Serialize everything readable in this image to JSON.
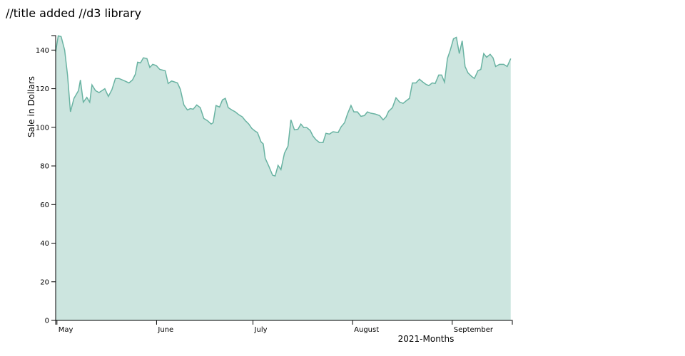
{
  "chart_data": {
    "type": "area",
    "title": "//title added //d3 library",
    "x_label": "2021-Months",
    "y_label": "Sale in Dollars",
    "x": [
      120.6,
      121.4,
      122.3,
      123.4,
      124.3,
      125.2,
      126.3,
      127.7,
      128.3,
      129.2,
      130.3,
      131.2,
      131.9,
      133.0,
      134.1,
      135.9,
      137.0,
      138.1,
      139.2,
      140.3,
      142.1,
      143.4,
      144.5,
      145.4,
      146.1,
      147.0,
      147.9,
      149.0,
      149.9,
      150.8,
      151.9,
      153.0,
      154.7,
      155.6,
      156.7,
      158.5,
      159.4,
      160.5,
      161.6,
      162.5,
      163.4,
      164.5,
      165.6,
      166.7,
      167.8,
      169.0,
      169.6,
      170.5,
      171.6,
      172.5,
      173.4,
      174.3,
      175.4,
      176.5,
      177.6,
      178.7,
      179.6,
      180.7,
      181.6,
      182.7,
      183.4,
      184.5,
      185.2,
      185.8,
      186.9,
      188.1,
      188.9,
      189.8,
      190.7,
      191.8,
      192.9,
      193.8,
      194.9,
      196.0,
      196.9,
      197.8,
      198.7,
      199.8,
      200.7,
      201.6,
      202.7,
      203.8,
      204.7,
      205.8,
      206.9,
      208.5,
      209.4,
      210.5,
      211.4,
      212.5,
      213.4,
      214.5,
      215.6,
      216.7,
      217.6,
      218.7,
      220.0,
      221.4,
      222.5,
      223.4,
      224.2,
      225.4,
      226.5,
      227.6,
      228.7,
      229.8,
      230.7,
      231.6,
      232.7,
      233.8,
      234.9,
      235.8,
      236.7,
      237.8,
      238.7,
      239.8,
      240.7,
      241.6,
      242.5,
      243.4,
      244.4,
      245.3,
      246.2,
      247.1,
      248.0,
      248.9,
      250.0,
      250.9,
      252.0,
      252.9,
      253.8,
      254.7,
      255.8,
      256.7,
      257.5,
      258.7,
      260.0,
      261.1,
      262.2
    ],
    "values": [
      139,
      147.4,
      147,
      140,
      127,
      108,
      115,
      119,
      124.5,
      113,
      115.5,
      113,
      122,
      119,
      118,
      120,
      116,
      119.5,
      125.3,
      125.3,
      124,
      123,
      124.5,
      127.5,
      133.7,
      133.4,
      136,
      135.6,
      131,
      132.6,
      132,
      130,
      129.3,
      122.7,
      124,
      123,
      119.7,
      111.6,
      109,
      109.7,
      109.4,
      111.6,
      110.2,
      104.6,
      103.5,
      101.7,
      102.4,
      111.3,
      110.5,
      114.2,
      115,
      110.2,
      109,
      108,
      106.5,
      105.4,
      103.5,
      101.7,
      99.5,
      98,
      97.3,
      92.5,
      91.4,
      84,
      80,
      75.2,
      74.8,
      80.3,
      78.1,
      86.6,
      90.3,
      103.9,
      98.7,
      99,
      101.7,
      99.9,
      99.9,
      98.4,
      95.4,
      93.6,
      92.1,
      92.1,
      96.9,
      96.5,
      97.7,
      97.3,
      100.2,
      102.4,
      106.9,
      111.3,
      108,
      108,
      105.7,
      106.1,
      108,
      107.3,
      106.9,
      106.1,
      103.9,
      105.4,
      108.3,
      110.2,
      115.3,
      113.1,
      112.4,
      113.9,
      115,
      123,
      123,
      124.9,
      123.4,
      122.3,
      121.6,
      123,
      122.7,
      127.1,
      127.1,
      123.4,
      135.6,
      140,
      145.9,
      146.6,
      138.2,
      144.8,
      131.5,
      128.2,
      126.4,
      125.3,
      129.3,
      130,
      138.2,
      136.3,
      137.8,
      136,
      131.5,
      132.6,
      132.6,
      131.5,
      135.6
    ],
    "xlim": [
      120.6,
      262.7
    ],
    "xticks": [
      {
        "value": 121,
        "label": "May"
      },
      {
        "value": 152,
        "label": "June"
      },
      {
        "value": 182,
        "label": "July"
      },
      {
        "value": 213,
        "label": "August"
      },
      {
        "value": 244,
        "label": "September"
      }
    ],
    "ylim": [
      0,
      147.5
    ],
    "yticks": [
      0,
      20,
      40,
      60,
      80,
      100,
      120,
      140
    ],
    "fill": "#cce5df",
    "color": "#69b3a2"
  }
}
